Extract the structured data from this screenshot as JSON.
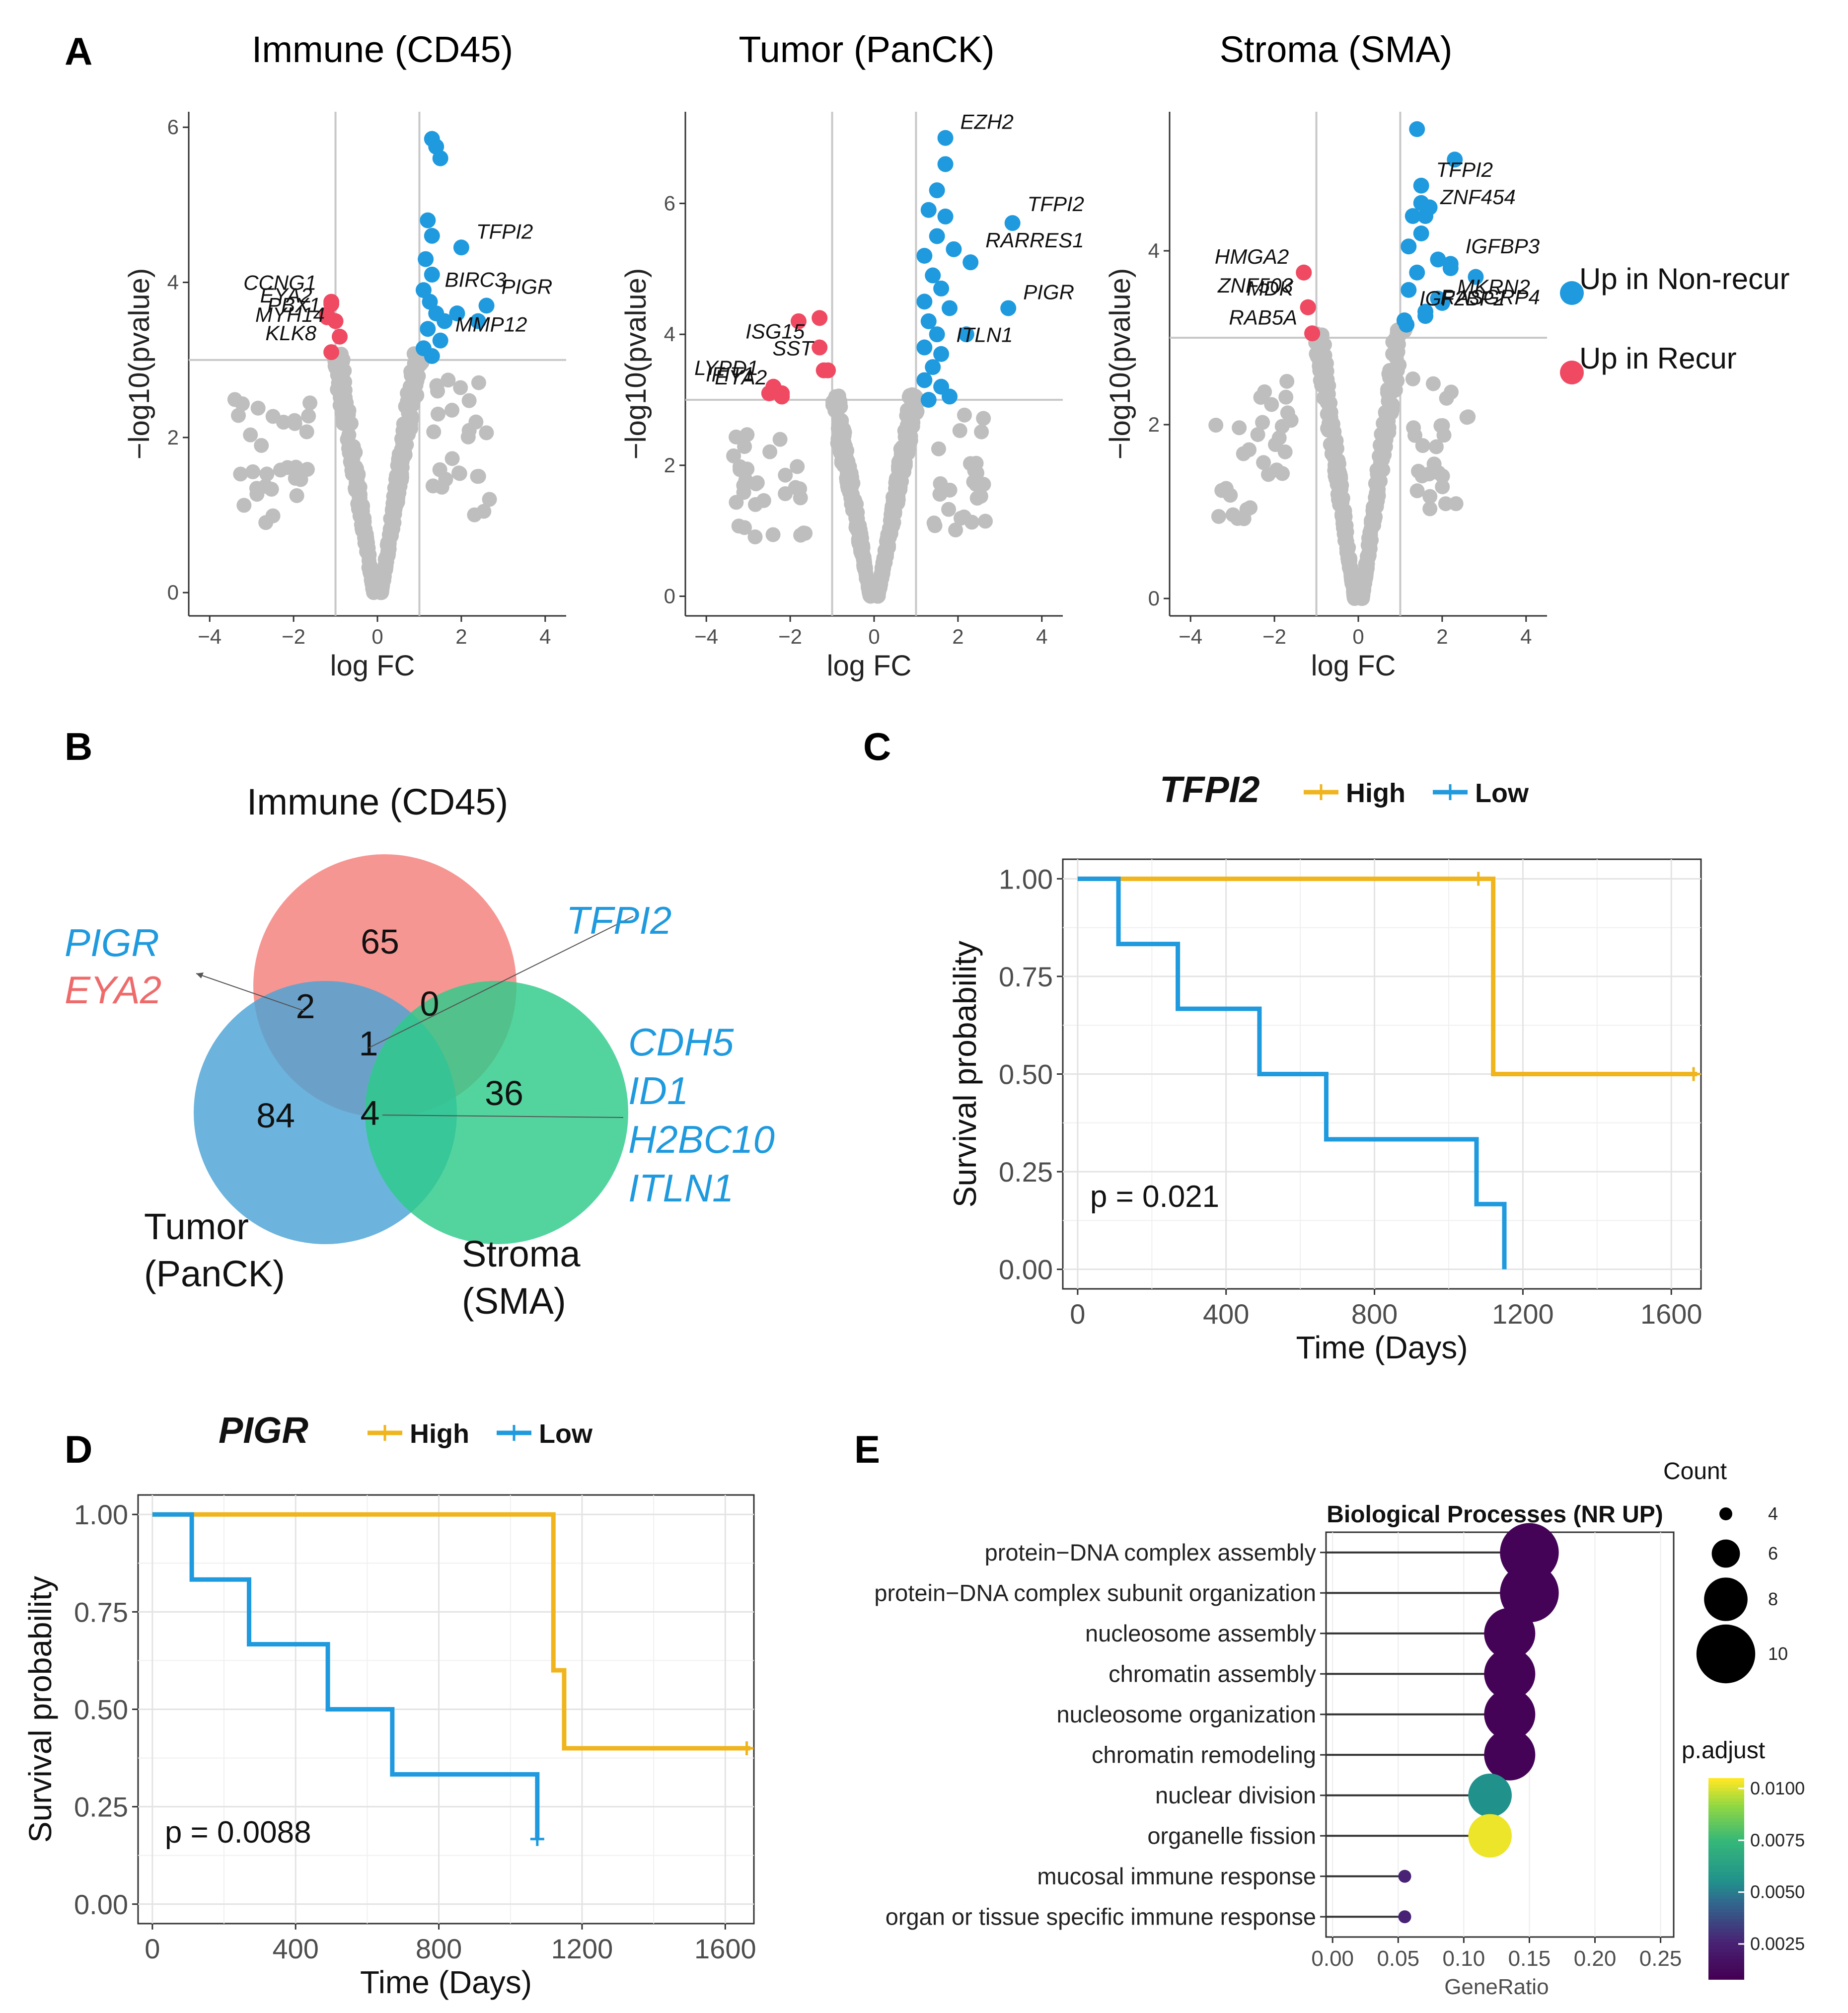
{
  "chart_data": [
    {
      "panel": "A",
      "type": "scatter",
      "subtype": "volcano",
      "title": "Immune (CD45)",
      "xlabel": "log FC",
      "ylabel": "−log10(pvalue)",
      "xlim": [
        -4.5,
        4.5
      ],
      "ylim": [
        -0.3,
        6.2
      ],
      "xticks": [
        "−4",
        "−2",
        "0",
        "2",
        "4"
      ],
      "yticks": [
        "0",
        "2",
        "4",
        "6"
      ],
      "thresholds": {
        "logfc": [
          -1,
          1
        ],
        "neglog10p": 3
      },
      "colors": {
        "nonsig": "#bebebe",
        "up_nonrecur": "#1f9ade",
        "up_recur": "#ef4a62"
      },
      "labeled_points": [
        {
          "gene": "TFPI2",
          "x": 2.0,
          "y": 4.45,
          "group": "up_nonrecur"
        },
        {
          "gene": "PIGR",
          "x": 2.6,
          "y": 3.7,
          "group": "up_nonrecur"
        },
        {
          "gene": "BIRC3",
          "x": 1.25,
          "y": 3.75,
          "group": "up_nonrecur"
        },
        {
          "gene": "MMP12",
          "x": 1.5,
          "y": 3.25,
          "group": "up_nonrecur"
        },
        {
          "gene": "CCNG1",
          "x": -1.1,
          "y": 3.75,
          "group": "up_recur"
        },
        {
          "gene": "EYA2",
          "x": -1.2,
          "y": 3.55,
          "group": "up_recur"
        },
        {
          "gene": "PBX1",
          "x": -1.0,
          "y": 3.5,
          "group": "up_recur"
        },
        {
          "gene": "KLK8",
          "x": -1.1,
          "y": 3.1,
          "group": "up_recur"
        },
        {
          "gene": "MYH14",
          "x": -0.9,
          "y": 3.3,
          "group": "up_recur"
        }
      ],
      "highlight_points": [
        {
          "x": 1.3,
          "y": 5.85
        },
        {
          "x": 1.4,
          "y": 5.75
        },
        {
          "x": 1.5,
          "y": 5.6
        },
        {
          "x": 1.2,
          "y": 4.8
        },
        {
          "x": 1.3,
          "y": 4.6
        },
        {
          "x": 1.15,
          "y": 4.3
        },
        {
          "x": 1.3,
          "y": 4.1
        },
        {
          "x": 1.1,
          "y": 3.9
        },
        {
          "x": 1.4,
          "y": 3.6
        },
        {
          "x": 1.6,
          "y": 3.5
        },
        {
          "x": 1.2,
          "y": 3.4
        },
        {
          "x": 2.4,
          "y": 3.5
        },
        {
          "x": 1.9,
          "y": 3.6
        },
        {
          "x": 1.1,
          "y": 3.15
        },
        {
          "x": 1.3,
          "y": 3.05
        }
      ],
      "recur_points": [
        {
          "x": -1.1,
          "y": 3.72
        },
        {
          "x": -1.2,
          "y": 3.58
        }
      ]
    },
    {
      "panel": "A",
      "type": "scatter",
      "subtype": "volcano",
      "title": "Tumor (PanCK)",
      "xlabel": "log FC",
      "ylabel": "−log10(pvalue)",
      "xlim": [
        -4.5,
        4.5
      ],
      "ylim": [
        -0.3,
        7.4
      ],
      "xticks": [
        "−4",
        "−2",
        "0",
        "2",
        "4"
      ],
      "yticks": [
        "0",
        "2",
        "4",
        "6"
      ],
      "thresholds": {
        "logfc": [
          -1,
          1
        ],
        "neglog10p": 3
      },
      "labeled_points": [
        {
          "gene": "EZH2",
          "x": 1.7,
          "y": 7.0,
          "group": "up_nonrecur"
        },
        {
          "gene": "TFPI2",
          "x": 3.3,
          "y": 5.7,
          "group": "up_nonrecur"
        },
        {
          "gene": "RARRES1",
          "x": 2.3,
          "y": 5.1,
          "group": "up_nonrecur"
        },
        {
          "gene": "PIGR",
          "x": 3.2,
          "y": 4.4,
          "group": "up_nonrecur"
        },
        {
          "gene": "ITLN1",
          "x": 1.6,
          "y": 3.7,
          "group": "up_nonrecur"
        },
        {
          "gene": "LYPD1",
          "x": -2.4,
          "y": 3.15,
          "group": "up_recur"
        },
        {
          "gene": "ISG15",
          "x": -1.3,
          "y": 3.8,
          "group": "up_recur"
        },
        {
          "gene": "IFIT1",
          "x": -2.5,
          "y": 3.1,
          "group": "up_recur"
        },
        {
          "gene": "SST",
          "x": -1.1,
          "y": 3.45,
          "group": "up_recur"
        },
        {
          "gene": "EYA2",
          "x": -2.2,
          "y": 3.1,
          "group": "up_recur"
        }
      ],
      "highlight_points": [
        {
          "x": 1.7,
          "y": 6.6
        },
        {
          "x": 1.5,
          "y": 6.2
        },
        {
          "x": 1.3,
          "y": 5.9
        },
        {
          "x": 1.7,
          "y": 5.8
        },
        {
          "x": 1.5,
          "y": 5.5
        },
        {
          "x": 1.9,
          "y": 5.3
        },
        {
          "x": 1.2,
          "y": 5.2
        },
        {
          "x": 1.4,
          "y": 4.9
        },
        {
          "x": 1.6,
          "y": 4.7
        },
        {
          "x": 1.2,
          "y": 4.5
        },
        {
          "x": 1.8,
          "y": 4.4
        },
        {
          "x": 1.3,
          "y": 4.2
        },
        {
          "x": 1.5,
          "y": 4.0
        },
        {
          "x": 1.2,
          "y": 3.8
        },
        {
          "x": 2.2,
          "y": 4.0
        },
        {
          "x": 1.4,
          "y": 3.5
        },
        {
          "x": 1.2,
          "y": 3.3
        },
        {
          "x": 1.6,
          "y": 3.2
        },
        {
          "x": 1.8,
          "y": 3.05
        },
        {
          "x": 1.3,
          "y": 3.0
        }
      ],
      "recur_points": [
        {
          "x": -1.8,
          "y": 4.2
        },
        {
          "x": -1.3,
          "y": 4.25
        },
        {
          "x": -1.2,
          "y": 3.45
        },
        {
          "x": -2.4,
          "y": 3.2
        },
        {
          "x": -2.5,
          "y": 3.1
        },
        {
          "x": -2.2,
          "y": 3.05
        }
      ]
    },
    {
      "panel": "A",
      "type": "scatter",
      "subtype": "volcano",
      "title": "Stroma (SMA)",
      "xlabel": "log FC",
      "ylabel": "−log10(pvalue)",
      "xlim": [
        -4.5,
        4.5
      ],
      "ylim": [
        -0.2,
        5.6
      ],
      "xticks": [
        "−4",
        "−2",
        "0",
        "2",
        "4"
      ],
      "yticks": [
        "0",
        "2",
        "4"
      ],
      "thresholds": {
        "logfc": [
          -1,
          1
        ],
        "neglog10p": 3
      },
      "labeled_points": [
        {
          "gene": "TFPI2",
          "x": 1.5,
          "y": 4.75,
          "group": "up_nonrecur"
        },
        {
          "gene": "ZNF454",
          "x": 1.6,
          "y": 4.4,
          "group": "up_nonrecur"
        },
        {
          "gene": "IGFBP3",
          "x": 2.2,
          "y": 3.8,
          "group": "up_nonrecur"
        },
        {
          "gene": "MKRN2",
          "x": 2.0,
          "y": 3.4,
          "group": "up_nonrecur"
        },
        {
          "gene": "RASGRP4",
          "x": 1.6,
          "y": 3.25,
          "group": "up_nonrecur"
        },
        {
          "gene": "IGF2BP2",
          "x": 1.1,
          "y": 3.2,
          "group": "up_nonrecur"
        },
        {
          "gene": "HMGA2",
          "x": -1.3,
          "y": 3.75,
          "group": "up_recur"
        },
        {
          "gene": "MDK",
          "x": -1.2,
          "y": 3.35,
          "group": "up_recur"
        },
        {
          "gene": "ZNF503",
          "x": -1.2,
          "y": 3.35,
          "group": "up_recur"
        },
        {
          "gene": "RAB5A",
          "x": -1.1,
          "y": 3.05,
          "group": "up_recur"
        }
      ],
      "highlight_points": [
        {
          "x": 1.4,
          "y": 5.4
        },
        {
          "x": 2.3,
          "y": 5.05
        },
        {
          "x": 1.5,
          "y": 4.55
        },
        {
          "x": 1.7,
          "y": 4.5
        },
        {
          "x": 1.3,
          "y": 4.4
        },
        {
          "x": 1.5,
          "y": 4.2
        },
        {
          "x": 1.2,
          "y": 4.05
        },
        {
          "x": 2.2,
          "y": 3.85
        },
        {
          "x": 2.8,
          "y": 3.7
        },
        {
          "x": 1.4,
          "y": 3.75
        },
        {
          "x": 1.9,
          "y": 3.45
        },
        {
          "x": 1.2,
          "y": 3.55
        },
        {
          "x": 1.6,
          "y": 3.3
        },
        {
          "x": 1.15,
          "y": 3.15
        },
        {
          "x": 1.9,
          "y": 3.9
        }
      ],
      "recur_points": [
        {
          "x": -1.3,
          "y": 3.75
        },
        {
          "x": -1.2,
          "y": 3.35
        },
        {
          "x": -1.1,
          "y": 3.05
        }
      ]
    },
    {
      "panel": "B",
      "type": "venn",
      "sets": [
        "Immune (CD45)",
        "Tumor\n(PanCK)",
        "Stroma\n(SMA)"
      ],
      "set_colors": [
        "#f47f7a",
        "#4ca4d6",
        "#2dca8a"
      ],
      "regions": {
        "immune_only": 65,
        "tumor_only": 84,
        "stroma_only": 36,
        "immune_tumor": 2,
        "immune_stroma": 0,
        "tumor_stroma": 4,
        "all_three": 1
      },
      "annotations": [
        {
          "region": "immune_tumor",
          "genes": [
            {
              "name": "PIGR",
              "color": "#1f9ade"
            },
            {
              "name": "EYA2",
              "color": "#ef6b6b"
            }
          ]
        },
        {
          "region": "all_three",
          "genes": [
            {
              "name": "TFPI2",
              "color": "#1f9ade"
            }
          ]
        },
        {
          "region": "tumor_stroma",
          "genes": [
            {
              "name": "CDH5",
              "color": "#1f9ade"
            },
            {
              "name": "ID1",
              "color": "#1f9ade"
            },
            {
              "name": "H2BC10",
              "color": "#1f9ade"
            },
            {
              "name": "ITLN1",
              "color": "#1f9ade"
            }
          ]
        }
      ]
    },
    {
      "panel": "C",
      "type": "line",
      "subtype": "kaplan-meier",
      "gene": "TFPI2",
      "xlabel": "Time (Days)",
      "ylabel": "Survival probability",
      "xlim": [
        -40,
        1680
      ],
      "ylim": [
        -0.05,
        1.05
      ],
      "xticks": [
        0,
        400,
        800,
        1200,
        1600
      ],
      "yticks": [
        "0.00",
        "0.25",
        "0.50",
        "0.75",
        "1.00"
      ],
      "pvalue": "p = 0.021",
      "series": [
        {
          "name": "High",
          "color": "#f0b41c",
          "steps": [
            [
              0,
              1.0
            ],
            [
              1120,
              1.0
            ],
            [
              1120,
              0.5
            ],
            [
              1670,
              0.5
            ]
          ],
          "censor": [
            [
              1080,
              1.0
            ],
            [
              1660,
              0.5
            ]
          ]
        },
        {
          "name": "Low",
          "color": "#1f9ade",
          "steps": [
            [
              0,
              1.0
            ],
            [
              110,
              1.0
            ],
            [
              110,
              0.833
            ],
            [
              270,
              0.833
            ],
            [
              270,
              0.667
            ],
            [
              490,
              0.667
            ],
            [
              490,
              0.5
            ],
            [
              670,
              0.5
            ],
            [
              670,
              0.333
            ],
            [
              1075,
              0.333
            ],
            [
              1075,
              0.167
            ],
            [
              1150,
              0.167
            ],
            [
              1150,
              0.0
            ]
          ],
          "censor": []
        }
      ]
    },
    {
      "panel": "D",
      "type": "line",
      "subtype": "kaplan-meier",
      "gene": "PIGR",
      "xlabel": "Time (Days)",
      "ylabel": "Survival probability",
      "xlim": [
        -40,
        1680
      ],
      "ylim": [
        -0.05,
        1.05
      ],
      "xticks": [
        0,
        400,
        800,
        1200,
        1600
      ],
      "yticks": [
        "0.00",
        "0.25",
        "0.50",
        "0.75",
        "1.00"
      ],
      "pvalue": "p = 0.0088",
      "series": [
        {
          "name": "High",
          "color": "#f0b41c",
          "steps": [
            [
              0,
              1.0
            ],
            [
              1120,
              1.0
            ],
            [
              1120,
              0.6
            ],
            [
              1150,
              0.6
            ],
            [
              1150,
              0.4
            ],
            [
              1670,
              0.4
            ]
          ],
          "censor": [
            [
              1660,
              0.4
            ]
          ]
        },
        {
          "name": "Low",
          "color": "#1f9ade",
          "steps": [
            [
              0,
              1.0
            ],
            [
              110,
              1.0
            ],
            [
              110,
              0.833
            ],
            [
              270,
              0.833
            ],
            [
              270,
              0.667
            ],
            [
              490,
              0.667
            ],
            [
              490,
              0.5
            ],
            [
              670,
              0.5
            ],
            [
              670,
              0.333
            ],
            [
              1075,
              0.333
            ],
            [
              1075,
              0.167
            ]
          ],
          "censor": [
            [
              1075,
              0.167
            ]
          ]
        }
      ]
    },
    {
      "panel": "E",
      "type": "scatter",
      "subtype": "lollipop-dotplot",
      "title": "Biological Processes (NR UP)",
      "xlabel": "GeneRatio",
      "xlim": [
        -0.005,
        0.26
      ],
      "xticks": [
        "0.00",
        "0.05",
        "0.10",
        "0.15",
        "0.20",
        "0.25"
      ],
      "terms": [
        {
          "label": "protein−DNA complex assembly",
          "gene_ratio": 0.15,
          "count": 10,
          "p_adjust": 0.0009
        },
        {
          "label": "protein−DNA complex subunit organization",
          "gene_ratio": 0.15,
          "count": 10,
          "p_adjust": 0.0009
        },
        {
          "label": "nucleosome assembly",
          "gene_ratio": 0.135,
          "count": 9,
          "p_adjust": 0.0009
        },
        {
          "label": "chromatin assembly",
          "gene_ratio": 0.135,
          "count": 9,
          "p_adjust": 0.0009
        },
        {
          "label": "nucleosome organization",
          "gene_ratio": 0.135,
          "count": 9,
          "p_adjust": 0.0009
        },
        {
          "label": "chromatin remodeling",
          "gene_ratio": 0.135,
          "count": 9,
          "p_adjust": 0.0009
        },
        {
          "label": "nuclear division",
          "gene_ratio": 0.12,
          "count": 8,
          "p_adjust": 0.0055
        },
        {
          "label": "organelle fission",
          "gene_ratio": 0.12,
          "count": 8,
          "p_adjust": 0.0103
        },
        {
          "label": "mucosal immune response",
          "gene_ratio": 0.055,
          "count": 4,
          "p_adjust": 0.0025
        },
        {
          "label": "organ or tissue specific immune response",
          "gene_ratio": 0.055,
          "count": 4,
          "p_adjust": 0.0025
        }
      ],
      "size_legend": {
        "title": "Count",
        "values": [
          4,
          6,
          8,
          10
        ]
      },
      "color_legend": {
        "title": "p.adjust",
        "ticks": [
          "0.0025",
          "0.0050",
          "0.0075",
          "0.0100"
        ],
        "range": [
          0.0008,
          0.0105
        ]
      }
    }
  ],
  "panels": {
    "a": {
      "label": "A"
    },
    "b": {
      "label": "B"
    },
    "c": {
      "label": "C"
    },
    "d": {
      "label": "D"
    },
    "e": {
      "label": "E"
    }
  },
  "volcano_legend": {
    "items": [
      {
        "label": "Up in Non-recur",
        "color": "#1f9ade"
      },
      {
        "label": "Up in Recur",
        "color": "#ef4a62"
      }
    ]
  }
}
